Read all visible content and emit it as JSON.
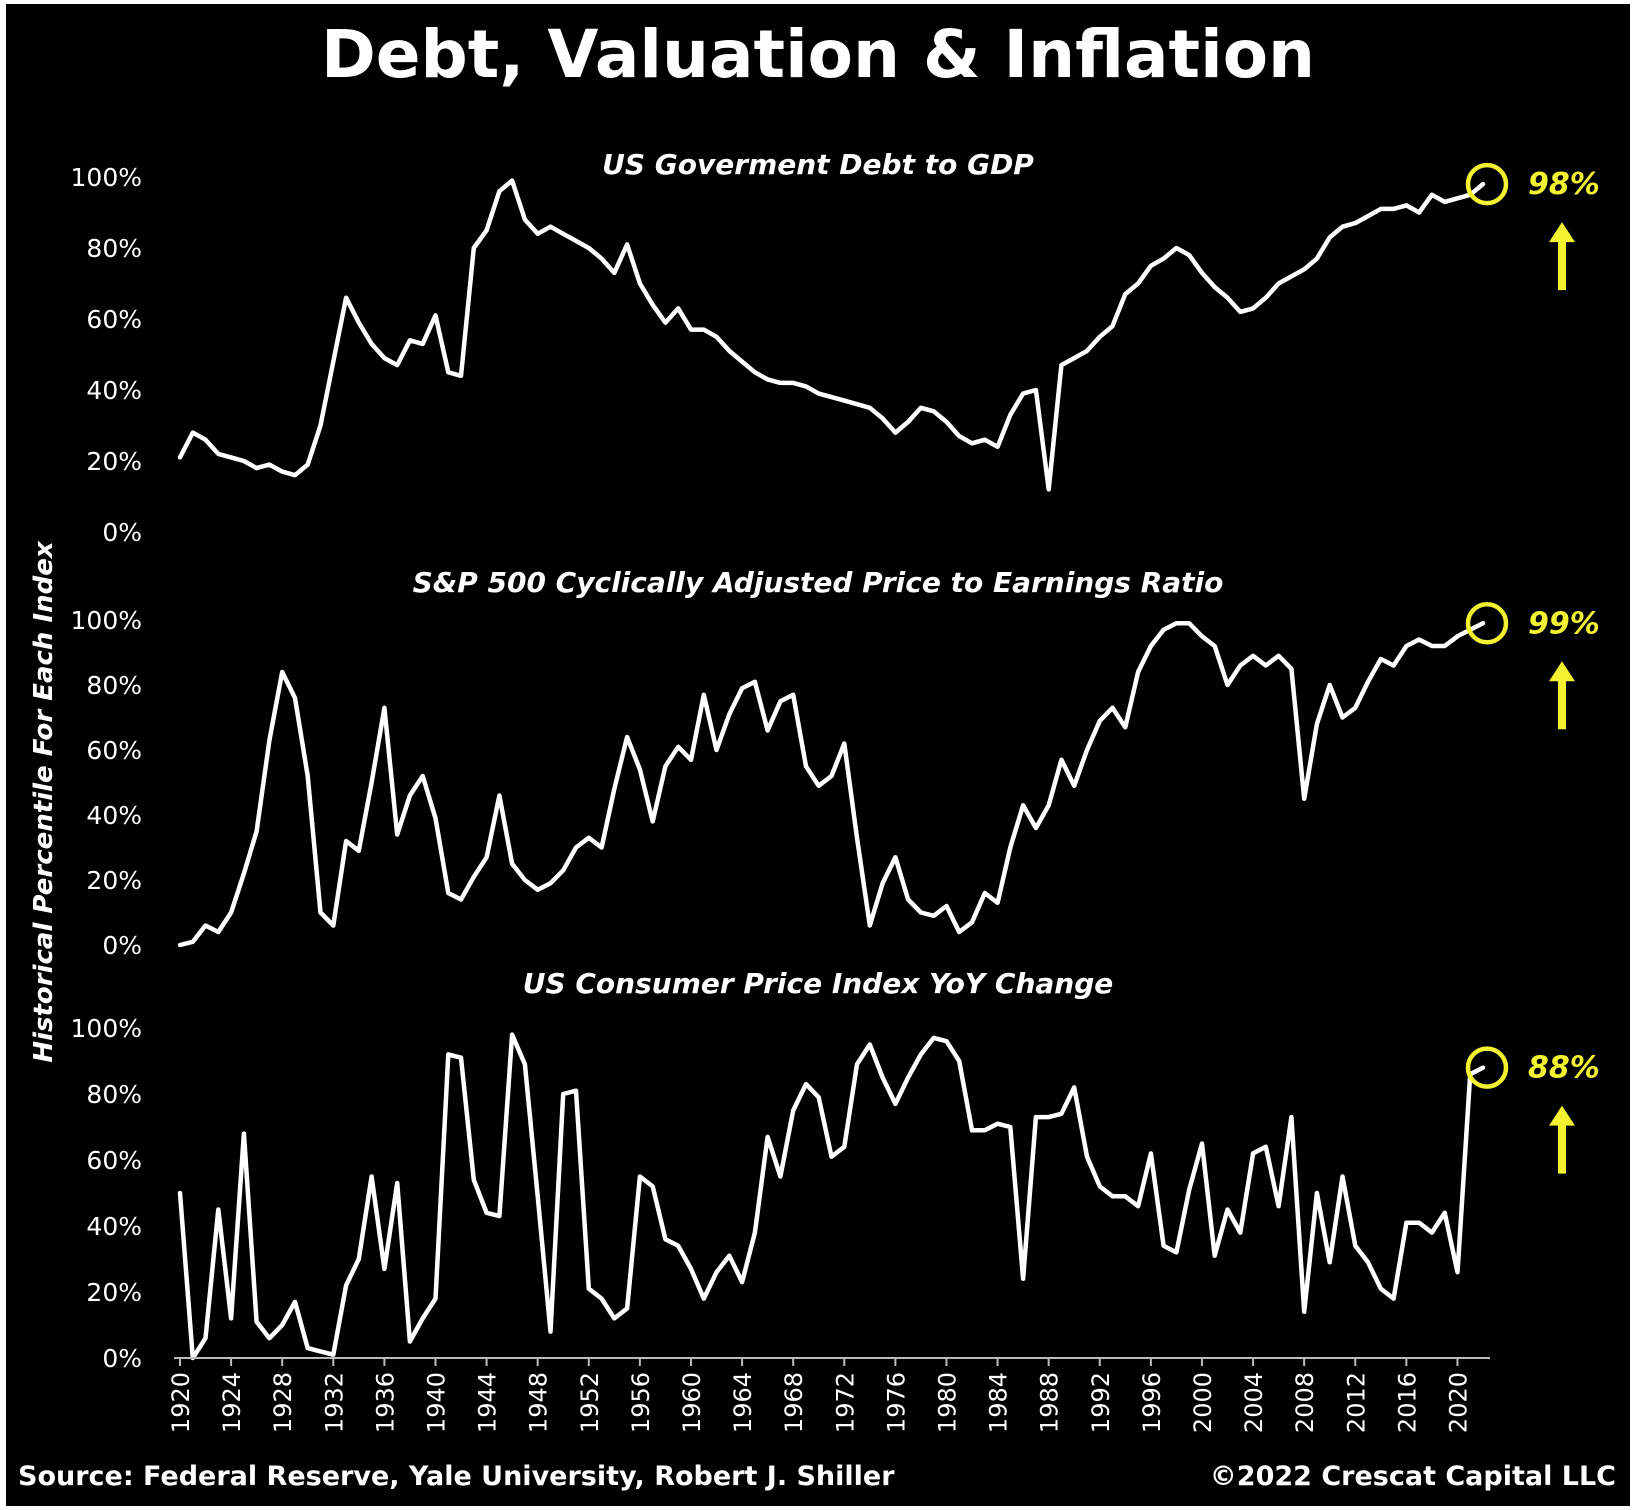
{
  "title": "Debt, Valuation & Inflation",
  "footer": {
    "source": "Source: Federal Reserve, Yale University, Robert J. Shiller",
    "copyright": "©2022 Crescat Capital LLC"
  },
  "colors": {
    "background": "#000000",
    "line": "#ffffff",
    "highlight": "#f2f231"
  },
  "y_axis_label": "Historical Percentile For Each Index",
  "x_ticks": [
    1920,
    1924,
    1928,
    1932,
    1936,
    1940,
    1944,
    1948,
    1952,
    1956,
    1960,
    1964,
    1968,
    1972,
    1976,
    1980,
    1984,
    1988,
    1992,
    1996,
    2000,
    2004,
    2008,
    2012,
    2016,
    2020
  ],
  "chart_data": [
    {
      "type": "line",
      "title": "US Goverment Debt to GDP",
      "ylim": [
        0,
        100
      ],
      "y_ticks": [
        "100%",
        "80%",
        "60%",
        "40%",
        "20%",
        "0%"
      ],
      "x": [
        1920,
        1921,
        1922,
        1923,
        1924,
        1925,
        1926,
        1927,
        1928,
        1929,
        1930,
        1931,
        1932,
        1933,
        1934,
        1935,
        1936,
        1937,
        1938,
        1939,
        1940,
        1941,
        1942,
        1943,
        1944,
        1945,
        1946,
        1947,
        1948,
        1949,
        1950,
        1951,
        1952,
        1953,
        1954,
        1955,
        1956,
        1957,
        1958,
        1959,
        1960,
        1961,
        1962,
        1963,
        1964,
        1965,
        1966,
        1967,
        1968,
        1969,
        1970,
        1971,
        1972,
        1973,
        1974,
        1975,
        1976,
        1977,
        1978,
        1979,
        1980,
        1981,
        1982,
        1983,
        1984,
        1985,
        1986,
        1987,
        1988,
        1989,
        1990,
        1991,
        1992,
        1993,
        1994,
        1995,
        1996,
        1997,
        1998,
        1999,
        2000,
        2001,
        2002,
        2003,
        2004,
        2005,
        2006,
        2007,
        2008,
        2009,
        2010,
        2011,
        2012,
        2013,
        2014,
        2015,
        2016,
        2017,
        2018,
        2019,
        2020,
        2021,
        2022
      ],
      "values": [
        21,
        28,
        26,
        22,
        21,
        20,
        18,
        19,
        17,
        16,
        19,
        30,
        48,
        66,
        59,
        53,
        49,
        47,
        54,
        53,
        61,
        45,
        44,
        80,
        85,
        96,
        99,
        88,
        84,
        86,
        84,
        82,
        80,
        77,
        73,
        81,
        70,
        64,
        59,
        63,
        57,
        57,
        55,
        51,
        48,
        45,
        43,
        42,
        42,
        41,
        39,
        38,
        37,
        36,
        35,
        32,
        28,
        31,
        35,
        34,
        31,
        27,
        25,
        26,
        24,
        33,
        39,
        40,
        12,
        47,
        49,
        51,
        55,
        58,
        67,
        70,
        75,
        77,
        80,
        78,
        73,
        69,
        66,
        62,
        63,
        66,
        70,
        72,
        74,
        77,
        83,
        86,
        87,
        89,
        91,
        91,
        92,
        90,
        95,
        93,
        94,
        95,
        98
      ],
      "highlight": {
        "label": "98%",
        "year": 2022,
        "value": 98
      }
    },
    {
      "type": "line",
      "title": "S&P 500 Cyclically Adjusted Price to Earnings Ratio",
      "ylim": [
        0,
        100
      ],
      "y_ticks": [
        "100%",
        "80%",
        "60%",
        "40%",
        "20%",
        "0%"
      ],
      "x": [
        1920,
        1921,
        1922,
        1923,
        1924,
        1925,
        1926,
        1927,
        1928,
        1929,
        1930,
        1931,
        1932,
        1933,
        1934,
        1935,
        1936,
        1937,
        1938,
        1939,
        1940,
        1941,
        1942,
        1943,
        1944,
        1945,
        1946,
        1947,
        1948,
        1949,
        1950,
        1951,
        1952,
        1953,
        1954,
        1955,
        1956,
        1957,
        1958,
        1959,
        1960,
        1961,
        1962,
        1963,
        1964,
        1965,
        1966,
        1967,
        1968,
        1969,
        1970,
        1971,
        1972,
        1973,
        1974,
        1975,
        1976,
        1977,
        1978,
        1979,
        1980,
        1981,
        1982,
        1983,
        1984,
        1985,
        1986,
        1987,
        1988,
        1989,
        1990,
        1991,
        1992,
        1993,
        1994,
        1995,
        1996,
        1997,
        1998,
        1999,
        2000,
        2001,
        2002,
        2003,
        2004,
        2005,
        2006,
        2007,
        2008,
        2009,
        2010,
        2011,
        2012,
        2013,
        2014,
        2015,
        2016,
        2017,
        2018,
        2019,
        2020,
        2021,
        2022
      ],
      "values": [
        0,
        1,
        6,
        4,
        10,
        22,
        35,
        63,
        84,
        76,
        52,
        10,
        6,
        32,
        29,
        50,
        73,
        34,
        46,
        52,
        39,
        16,
        14,
        21,
        27,
        46,
        25,
        20,
        17,
        19,
        23,
        30,
        33,
        30,
        48,
        64,
        54,
        38,
        55,
        61,
        57,
        77,
        60,
        71,
        79,
        81,
        66,
        75,
        77,
        55,
        49,
        52,
        62,
        33,
        6,
        19,
        27,
        14,
        10,
        9,
        12,
        4,
        7,
        16,
        13,
        30,
        43,
        36,
        43,
        57,
        49,
        60,
        69,
        73,
        67,
        84,
        92,
        97,
        99,
        99,
        95,
        92,
        80,
        86,
        89,
        86,
        89,
        85,
        45,
        68,
        80,
        70,
        73,
        81,
        88,
        86,
        92,
        94,
        92,
        92,
        95,
        97,
        99
      ],
      "highlight": {
        "label": "99%",
        "year": 2022,
        "value": 99
      }
    },
    {
      "type": "line",
      "title": "US Consumer Price Index YoY Change",
      "ylim": [
        0,
        100
      ],
      "y_ticks": [
        "100%",
        "80%",
        "60%",
        "40%",
        "20%",
        "0%"
      ],
      "x": [
        1920,
        1921,
        1922,
        1923,
        1924,
        1925,
        1926,
        1927,
        1928,
        1929,
        1930,
        1931,
        1932,
        1933,
        1934,
        1935,
        1936,
        1937,
        1938,
        1939,
        1940,
        1941,
        1942,
        1943,
        1944,
        1945,
        1946,
        1947,
        1948,
        1949,
        1950,
        1951,
        1952,
        1953,
        1954,
        1955,
        1956,
        1957,
        1958,
        1959,
        1960,
        1961,
        1962,
        1963,
        1964,
        1965,
        1966,
        1967,
        1968,
        1969,
        1970,
        1971,
        1972,
        1973,
        1974,
        1975,
        1976,
        1977,
        1978,
        1979,
        1980,
        1981,
        1982,
        1983,
        1984,
        1985,
        1986,
        1987,
        1988,
        1989,
        1990,
        1991,
        1992,
        1993,
        1994,
        1995,
        1996,
        1997,
        1998,
        1999,
        2000,
        2001,
        2002,
        2003,
        2004,
        2005,
        2006,
        2007,
        2008,
        2009,
        2010,
        2011,
        2012,
        2013,
        2014,
        2015,
        2016,
        2017,
        2018,
        2019,
        2020,
        2021,
        2022
      ],
      "values": [
        50,
        0,
        6,
        45,
        12,
        68,
        11,
        6,
        10,
        17,
        3,
        2,
        1,
        22,
        30,
        55,
        27,
        53,
        5,
        12,
        18,
        92,
        91,
        54,
        44,
        43,
        98,
        89,
        49,
        8,
        80,
        81,
        21,
        18,
        12,
        15,
        55,
        52,
        36,
        34,
        27,
        18,
        26,
        31,
        23,
        38,
        67,
        55,
        75,
        83,
        79,
        61,
        64,
        89,
        95,
        85,
        77,
        85,
        92,
        97,
        96,
        90,
        69,
        69,
        71,
        70,
        24,
        73,
        73,
        74,
        82,
        61,
        52,
        49,
        49,
        46,
        62,
        34,
        32,
        51,
        65,
        31,
        45,
        38,
        62,
        64,
        46,
        73,
        14,
        50,
        29,
        55,
        34,
        29,
        21,
        18,
        41,
        41,
        38,
        44,
        26,
        86,
        88
      ],
      "highlight": {
        "label": "88%",
        "year": 2022,
        "value": 88
      }
    }
  ]
}
